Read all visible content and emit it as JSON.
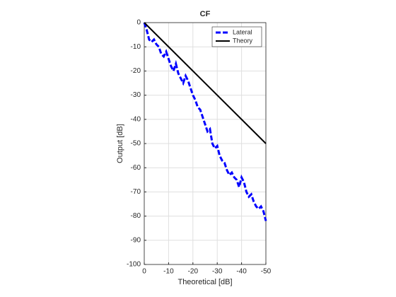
{
  "chart_data": {
    "type": "line",
    "title": "CF",
    "xlabel": "Theoretical [dB]",
    "ylabel": "Output [dB]",
    "xlim": [
      0,
      -50
    ],
    "xticks": [
      0,
      -10,
      -20,
      -30,
      -40,
      -50
    ],
    "ylim": [
      -100,
      0
    ],
    "yticks": [
      0,
      -10,
      -20,
      -30,
      -40,
      -50,
      -60,
      -70,
      -80,
      -90,
      -100
    ],
    "grid": true,
    "legend_position": "northeast",
    "series": [
      {
        "name": "Lateral",
        "color": "#0000ff",
        "style": "dashed",
        "x": [
          0,
          -1,
          -2,
          -3,
          -4,
          -5,
          -6,
          -7,
          -8,
          -9,
          -10,
          -11,
          -12,
          -13,
          -14,
          -15,
          -16,
          -17,
          -18,
          -19,
          -20,
          -21,
          -22,
          -23,
          -24,
          -25,
          -26,
          -27,
          -28,
          -29,
          -30,
          -31,
          -32,
          -33,
          -34,
          -35,
          -36,
          -37,
          -38,
          -39,
          -40,
          -41,
          -42,
          -43,
          -44,
          -45,
          -46,
          -47,
          -48,
          -49,
          -50
        ],
        "values": [
          0,
          -3,
          -7,
          -8,
          -7,
          -9,
          -10,
          -13,
          -14,
          -12,
          -15,
          -18,
          -20,
          -17,
          -21,
          -23,
          -25,
          -22,
          -24,
          -27,
          -30,
          -32,
          -35,
          -36,
          -39,
          -42,
          -45,
          -44,
          -50,
          -52,
          -51,
          -55,
          -57,
          -58,
          -61,
          -63,
          -62,
          -64,
          -65,
          -68,
          -64,
          -66,
          -70,
          -72,
          -71,
          -74,
          -76,
          -77,
          -76,
          -78,
          -82
        ]
      },
      {
        "name": "Theory",
        "color": "#000000",
        "style": "solid",
        "x": [
          0,
          -50
        ],
        "values": [
          0,
          -50
        ]
      }
    ]
  }
}
